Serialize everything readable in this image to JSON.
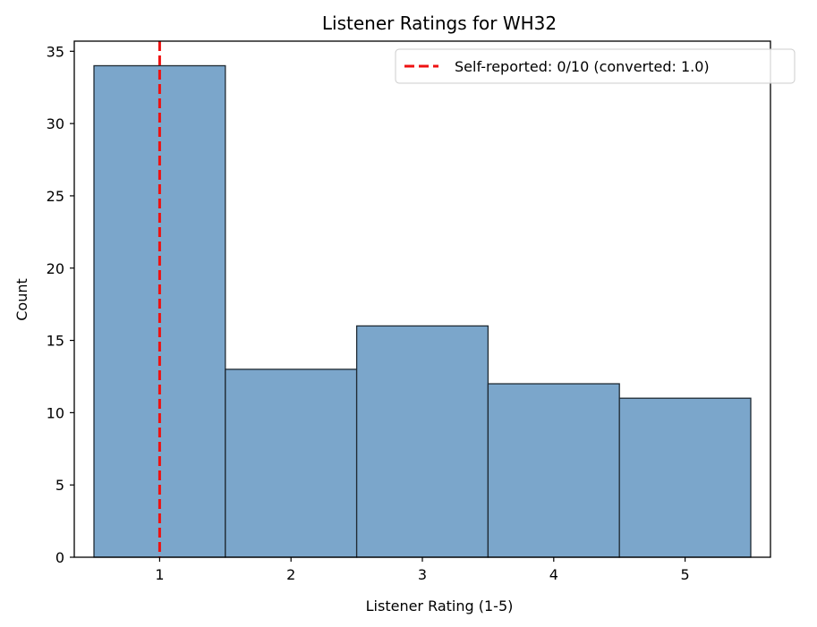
{
  "chart_data": {
    "type": "bar",
    "title": "Listener Ratings for WH32",
    "xlabel": "Listener Rating (1-5)",
    "ylabel": "Count",
    "categories": [
      1,
      2,
      3,
      4,
      5
    ],
    "values": [
      34,
      13,
      16,
      12,
      11
    ],
    "xlim": [
      0.35,
      5.65
    ],
    "ylim": [
      0,
      35.7
    ],
    "xticks": [
      "1",
      "2",
      "3",
      "4",
      "5"
    ],
    "yticks": [
      "0",
      "5",
      "10",
      "15",
      "20",
      "25",
      "30",
      "35"
    ],
    "bar_color": "#7ba6cb",
    "bar_edge_color": "#1f2a33",
    "reference_line": {
      "x": 1.0,
      "color": "#ee1111",
      "style": "dashed",
      "label": "Self-reported: 0/10 (converted: 1.0)"
    },
    "legend_position": "top-right",
    "grid": false
  }
}
